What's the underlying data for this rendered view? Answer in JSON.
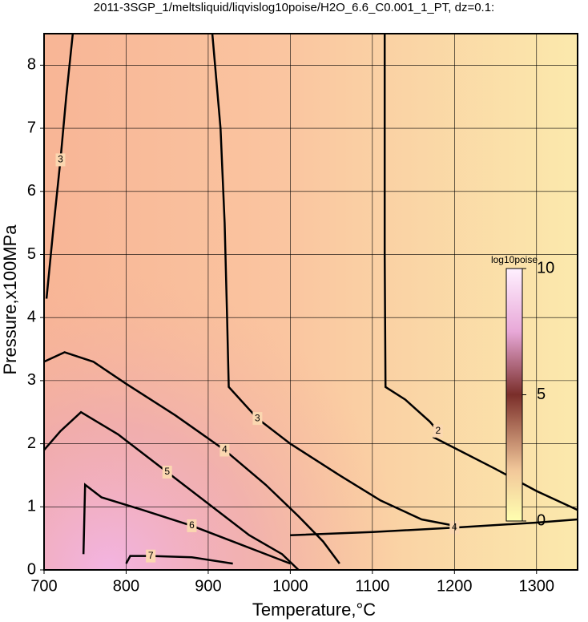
{
  "chart_data": {
    "type": "contour",
    "title": "2011-3SGP_1/meltsliquid/liqvislog10poise/H2O_6.6_C0.001_1_PT, dz=0.1:",
    "x_label": "Temperature,°C",
    "y_label": "Pressure,x100MPa",
    "xlim": [
      700,
      1350
    ],
    "ylim": [
      0,
      8.5
    ],
    "xticks": [
      700,
      800,
      900,
      1000,
      1100,
      1200,
      1300
    ],
    "yticks": [
      0,
      1,
      2,
      3,
      4,
      5,
      6,
      7,
      8
    ],
    "grid": true,
    "colorbar": {
      "label": "log10poise",
      "lim": [
        0,
        10
      ],
      "ticks": [
        0,
        5,
        10
      ]
    },
    "contours": [
      {
        "level": 2,
        "x": [
          1115,
          1115,
          1116,
          1140,
          1170,
          1180,
          1175,
          1190,
          1250,
          1300,
          1350
        ],
        "y": [
          8.5,
          5,
          2.9,
          2.7,
          2.35,
          2.2,
          2.1,
          2.0,
          1.6,
          1.25,
          0.95
        ]
      },
      {
        "level": 3,
        "x": [
          905,
          915,
          920,
          923,
          925,
          960,
          1000,
          1060,
          1110,
          1160,
          1200
        ],
        "y": [
          8.5,
          7,
          5.5,
          4,
          2.9,
          2.4,
          2.0,
          1.5,
          1.1,
          0.8,
          0.7
        ]
      },
      {
        "level": 3,
        "x": [
          703,
          712,
          720,
          727,
          735
        ],
        "y": [
          4.3,
          5.5,
          6.5,
          7.5,
          8.5
        ]
      },
      {
        "level": 4,
        "x": [
          700,
          725,
          760,
          800,
          860,
          920,
          970,
          1010,
          1040,
          1060
        ],
        "y": [
          3.3,
          3.45,
          3.3,
          2.95,
          2.45,
          1.9,
          1.35,
          0.85,
          0.45,
          0.1
        ]
      },
      {
        "level": 5,
        "x": [
          700,
          720,
          745,
          790,
          850,
          900,
          950,
          990,
          1010
        ],
        "y": [
          1.9,
          2.2,
          2.5,
          2.15,
          1.55,
          1.05,
          0.55,
          0.25,
          0.0
        ]
      },
      {
        "level": 6,
        "x": [
          748,
          750,
          770,
          820,
          880,
          930,
          980,
          1000
        ],
        "y": [
          0.25,
          1.35,
          1.15,
          0.95,
          0.7,
          0.45,
          0.2,
          0.1
        ]
      },
      {
        "level": 7,
        "x": [
          800,
          805,
          830,
          880,
          930
        ],
        "y": [
          0.1,
          0.22,
          0.22,
          0.2,
          0.1
        ]
      },
      {
        "level": 4,
        "x": [
          1000,
          1100,
          1200,
          1300,
          1350
        ],
        "y": [
          0.55,
          0.6,
          0.67,
          0.75,
          0.8
        ]
      }
    ]
  }
}
